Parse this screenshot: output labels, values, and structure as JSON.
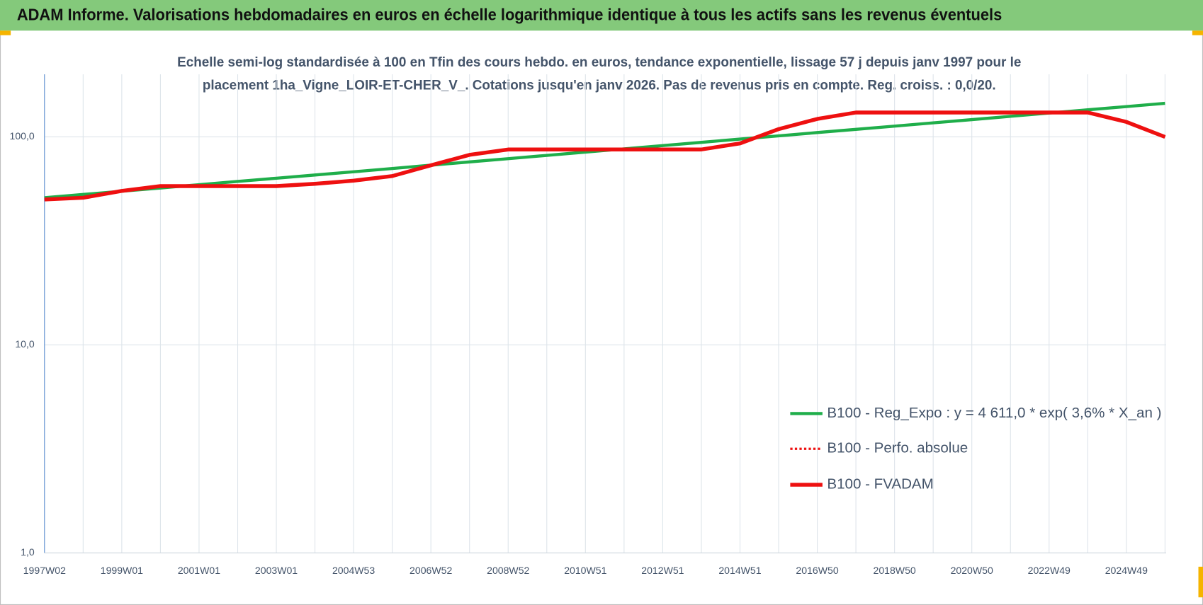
{
  "chart_data": {
    "type": "line",
    "title": "ADAM Informe. Valorisations hebdomadaires en euros en échelle logarithmique identique à tous les actifs sans les revenus éventuels",
    "subtitle": [
      "Echelle semi-log standardisée à 100 en Tfin des cours hebdo. en euros, tendance exponentielle, lissage 57 j depuis janv 1997 pour le",
      "placement 1ha_Vigne_LOIR-ET-CHER_V_. Cotations jusqu'en janv 2026.  Pas de revenus pris en compte. Reg. croiss. : 0,0/20."
    ],
    "categories": [
      "1997W02",
      null,
      "1999W01",
      null,
      "2001W01",
      null,
      "2003W01",
      null,
      "2004W53",
      null,
      "2006W52",
      null,
      "2008W52",
      null,
      "2010W51",
      null,
      "2012W51",
      null,
      "2014W51",
      null,
      "2016W50",
      null,
      "2018W50",
      null,
      "2020W50",
      null,
      "2022W49",
      null,
      "2024W49",
      null
    ],
    "y_scale": "log",
    "ylim": [
      1,
      200
    ],
    "yticks": [
      {
        "value": 1,
        "label": "1,0"
      },
      {
        "value": 10,
        "label": "10,0"
      },
      {
        "value": 100,
        "label": "100,0"
      }
    ],
    "grid": true,
    "series": [
      {
        "name": "B100 - Reg_Expo : y = 4 611,0 * exp( 3,6% *  X_an )",
        "color": "#1fae4a",
        "line_style": "solid",
        "line_width": 4,
        "values": [
          51,
          52.9,
          54.8,
          56.8,
          58.9,
          61.1,
          63.3,
          65.6,
          68.0,
          70.5,
          73.1,
          75.8,
          78.6,
          81.5,
          84.5,
          87.6,
          90.8,
          94.1,
          97.6,
          101.2,
          104.9,
          108.7,
          112.7,
          116.8,
          121.1,
          125.6,
          130.2,
          135.0,
          139.9,
          145.0
        ]
      },
      {
        "name": "B100 - Perfo. absolue",
        "color": "#ee1010",
        "line_style": "dotted",
        "line_width": 3,
        "values": [
          50,
          51,
          55,
          58,
          58,
          58,
          58,
          59.5,
          61.6,
          64.8,
          73,
          82,
          87,
          87,
          87,
          87,
          87,
          87,
          93,
          109,
          122,
          131,
          131,
          131,
          131,
          131,
          131,
          131,
          118,
          100
        ]
      },
      {
        "name": "B100 - FVADAM",
        "color": "#ee1010",
        "line_style": "solid",
        "line_width": 5,
        "values": [
          50,
          51,
          55,
          58,
          58,
          58,
          58,
          59.5,
          61.6,
          64.8,
          73,
          82,
          87,
          87,
          87,
          87,
          87,
          87,
          93,
          109,
          122,
          131,
          131,
          131,
          131,
          131,
          131,
          131,
          118,
          100
        ]
      }
    ]
  }
}
